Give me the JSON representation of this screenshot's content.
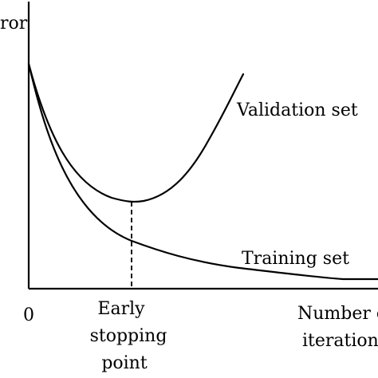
{
  "figure": {
    "ylabel": "ror",
    "origin_label": "0",
    "xlabel_line1": "Number o",
    "xlabel_line2": "iteration",
    "marker_line1": "Early",
    "marker_line2": "stopping",
    "marker_line3": "point",
    "validation_label": "Validation set",
    "training_label": "Training set"
  },
  "colors": {
    "ink": "#000000",
    "background": "#ffffff"
  }
}
